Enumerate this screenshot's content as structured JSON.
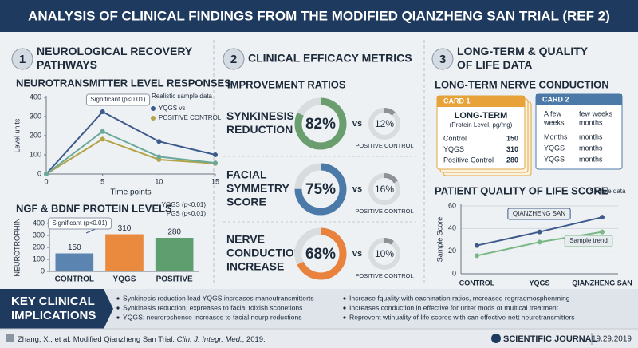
{
  "header": {
    "title": "ANALYSIS OF CLINICAL FINDINGS FROM THE MODIFIED QIANZHENG SAN TRIAL (REF 2)"
  },
  "sections": [
    {
      "number": "1",
      "title_lines": [
        "NEUROLOGICAL RECOVERY",
        "PATHWAYS"
      ]
    },
    {
      "number": "2",
      "title_lines": [
        "CLINICAL EFFICACY METRICS"
      ]
    },
    {
      "number": "3",
      "title_lines": [
        "LONG-TERM & QUALITY",
        "OF LIFE DATA"
      ]
    }
  ],
  "chart_data": [
    {
      "type": "line",
      "title": "NEUROTRANSMITTER LEVEL RESPONSES",
      "x": [
        0,
        5,
        10,
        15
      ],
      "xlim": [
        0,
        15
      ],
      "xticks": [
        0,
        5,
        10,
        15
      ],
      "ylim": [
        0,
        400
      ],
      "yticks": [
        0,
        100,
        200,
        300,
        400
      ],
      "xlabel": "Time points",
      "ylabel": "Level units",
      "grid": false,
      "series": [
        {
          "name": "YQGS vs",
          "color": "#3d5a8c",
          "values": [
            0,
            325,
            170,
            100
          ]
        },
        {
          "name": "POSITIVE CONTROL",
          "color": "#b3a448",
          "values": [
            0,
            182,
            75,
            55
          ]
        },
        {
          "color": "#6aa89b",
          "values": [
            0,
            222,
            90,
            58
          ]
        }
      ],
      "annotations": [
        "Significant (p<0.01)",
        "Realistic sample data"
      ]
    },
    {
      "type": "bar",
      "title": "NGF & BDNF PROTEIN LEVELS",
      "categories": [
        "CONTROL",
        "YQGS",
        "POSITIVE"
      ],
      "values": [
        150,
        310,
        280
      ],
      "colors": [
        "#5b84b1",
        "#ea8a3e",
        "#5f9e6e"
      ],
      "ylim": [
        0,
        400
      ],
      "yticks": [
        0,
        100,
        200,
        300,
        400
      ],
      "ylabel": "NEUROTROPHIN",
      "grid": false,
      "annotations": [
        "YQGS (p<0.01)",
        "PGS (p<0.01)",
        "Significant (p<0.01)"
      ]
    },
    {
      "type": "donut",
      "title": "IMPROVEMENT RATIOS",
      "categories": [
        [
          "SYNKINESIS",
          "REDUCTION"
        ],
        [
          "FACIAL",
          "SYMMETRY",
          "SCORE"
        ],
        [
          "NERVE",
          "CONDUCTION",
          "INCREASE"
        ]
      ],
      "comparison_label": "vs",
      "ylim": [
        0,
        100
      ],
      "series": [
        {
          "colors": [
            "#6a9e6e",
            "#4c7aa8",
            "#e8823c"
          ],
          "values": [
            82,
            75,
            68
          ],
          "value_labels": [
            "82%",
            "75%",
            "68%"
          ]
        },
        {
          "name": "POSITIVE CONTROL",
          "color": "#8e9298",
          "values": [
            12,
            16,
            10
          ],
          "value_labels": [
            "12%",
            "16%",
            "10%"
          ]
        }
      ]
    },
    {
      "type": "line",
      "title": "PATIENT QUALITY OF LIFE SCORE",
      "categories": [
        "CONTROL",
        "YQGS",
        "QIANZHENG SAN"
      ],
      "ylim": [
        0,
        60
      ],
      "yticks": [
        0,
        20,
        40,
        60
      ],
      "ylabel": "Sample Score",
      "grid": true,
      "series": [
        {
          "name": "QIANZHENG SAN",
          "color": "#3d5a8c",
          "values": [
            25,
            37,
            50
          ]
        },
        {
          "name": "Sample trend",
          "color": "#79b784",
          "values": [
            16,
            28,
            37
          ]
        }
      ],
      "annotations": [
        "Sample data"
      ]
    }
  ],
  "cards": {
    "title": "LONG-TERM NERVE CONDUCTION",
    "card1": {
      "tab": "CARD 1",
      "title": "LONG-TERM",
      "subtitle": "(Protein Level, pg/mg)",
      "rows": [
        [
          "Control",
          150
        ],
        [
          "YQGS",
          310
        ],
        [
          "Positive Control",
          280
        ]
      ]
    },
    "card2": {
      "tab": "CARD 2",
      "rows": [
        [
          [
            "A few",
            "weeks"
          ],
          [
            "few weeks",
            "months"
          ]
        ],
        [
          [
            "Months"
          ],
          [
            "months"
          ]
        ],
        [
          [
            "YQGS"
          ],
          [
            "months"
          ]
        ],
        [
          [
            "YQGS"
          ],
          [
            "months"
          ]
        ]
      ]
    }
  },
  "implications": {
    "title_lines": [
      "KEY CLINICAL",
      "IMPLICATIONS"
    ],
    "bullets": [
      "Synkinesis reduction lead YQGS increases maneutransmitterts",
      "Synkinesis reduction, expreases to facial tolxish sconetions",
      "YQGS: neuroroshence increases to facial neurp reductions",
      "Increase fquality with eachination ratios, mcreased regrradmosphenming",
      "Increases conduction in effective for uriter mods ot multical treatment",
      "Reprevent wtinuality of life scores with can effective-nett neurotransmitters"
    ]
  },
  "footer": {
    "citation": [
      "Zhang, X., et al. Modified Qianzheng San Trial. ",
      "Clin. J. Integr. Med.",
      ", 2019."
    ],
    "journal": "SCIENTIFIC JOURNAL",
    "date": "19.29.2019"
  }
}
